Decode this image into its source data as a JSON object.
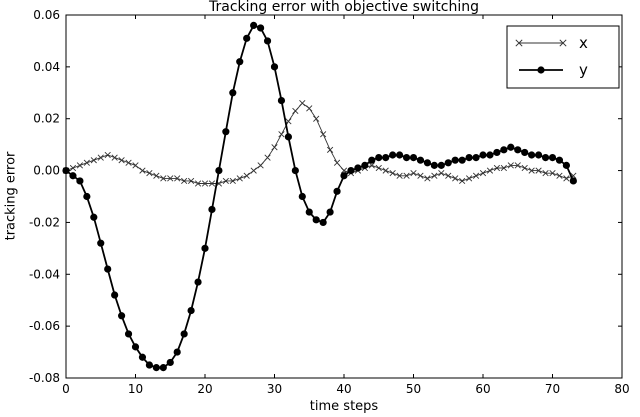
{
  "figure": {
    "title": "Tracking error with objective switching",
    "xlabel": "time steps",
    "ylabel": "tracking error"
  },
  "chart_data": {
    "type": "line",
    "title": "Tracking error with objective switching",
    "xlabel": "time steps",
    "ylabel": "tracking error",
    "xlim": [
      0,
      80
    ],
    "ylim": [
      -0.08,
      0.06
    ],
    "xticks": [
      0,
      10,
      20,
      30,
      40,
      50,
      60,
      70,
      80
    ],
    "yticks": [
      -0.08,
      -0.06,
      -0.04,
      -0.02,
      0.0,
      0.02,
      0.04,
      0.06
    ],
    "grid": false,
    "legend": {
      "position": "upper right",
      "entries": [
        "x",
        "y"
      ]
    },
    "series": [
      {
        "name": "x",
        "marker": "x",
        "color": "#333333",
        "line_width": 0.9,
        "x_step": 1,
        "values": [
          0.0,
          0.001,
          0.002,
          0.003,
          0.004,
          0.005,
          0.006,
          0.005,
          0.004,
          0.003,
          0.002,
          0.0,
          -0.001,
          -0.002,
          -0.003,
          -0.003,
          -0.003,
          -0.004,
          -0.004,
          -0.005,
          -0.005,
          -0.005,
          -0.005,
          -0.004,
          -0.004,
          -0.003,
          -0.002,
          0.0,
          0.002,
          0.005,
          0.009,
          0.014,
          0.019,
          0.023,
          0.026,
          0.024,
          0.02,
          0.014,
          0.008,
          0.003,
          0.0,
          -0.001,
          0.0,
          0.001,
          0.002,
          0.001,
          0.0,
          -0.001,
          -0.002,
          -0.002,
          -0.001,
          -0.002,
          -0.003,
          -0.002,
          -0.001,
          -0.002,
          -0.003,
          -0.004,
          -0.003,
          -0.002,
          -0.001,
          0.0,
          0.001,
          0.001,
          0.002,
          0.002,
          0.001,
          0.0,
          0.0,
          -0.001,
          -0.001,
          -0.002,
          -0.003,
          -0.002
        ]
      },
      {
        "name": "y",
        "marker": "circle",
        "color": "#000000",
        "line_width": 1.8,
        "x_step": 1,
        "values": [
          0.0,
          -0.002,
          -0.004,
          -0.01,
          -0.018,
          -0.028,
          -0.038,
          -0.048,
          -0.056,
          -0.063,
          -0.068,
          -0.072,
          -0.075,
          -0.076,
          -0.076,
          -0.074,
          -0.07,
          -0.063,
          -0.054,
          -0.043,
          -0.03,
          -0.015,
          0.0,
          0.015,
          0.03,
          0.042,
          0.051,
          0.056,
          0.055,
          0.05,
          0.04,
          0.027,
          0.013,
          0.0,
          -0.01,
          -0.016,
          -0.019,
          -0.02,
          -0.016,
          -0.008,
          -0.002,
          0.0,
          0.001,
          0.002,
          0.004,
          0.005,
          0.005,
          0.006,
          0.006,
          0.005,
          0.005,
          0.004,
          0.003,
          0.002,
          0.002,
          0.003,
          0.004,
          0.004,
          0.005,
          0.005,
          0.006,
          0.006,
          0.007,
          0.008,
          0.009,
          0.008,
          0.007,
          0.006,
          0.006,
          0.005,
          0.005,
          0.004,
          0.002,
          -0.004
        ]
      }
    ]
  }
}
